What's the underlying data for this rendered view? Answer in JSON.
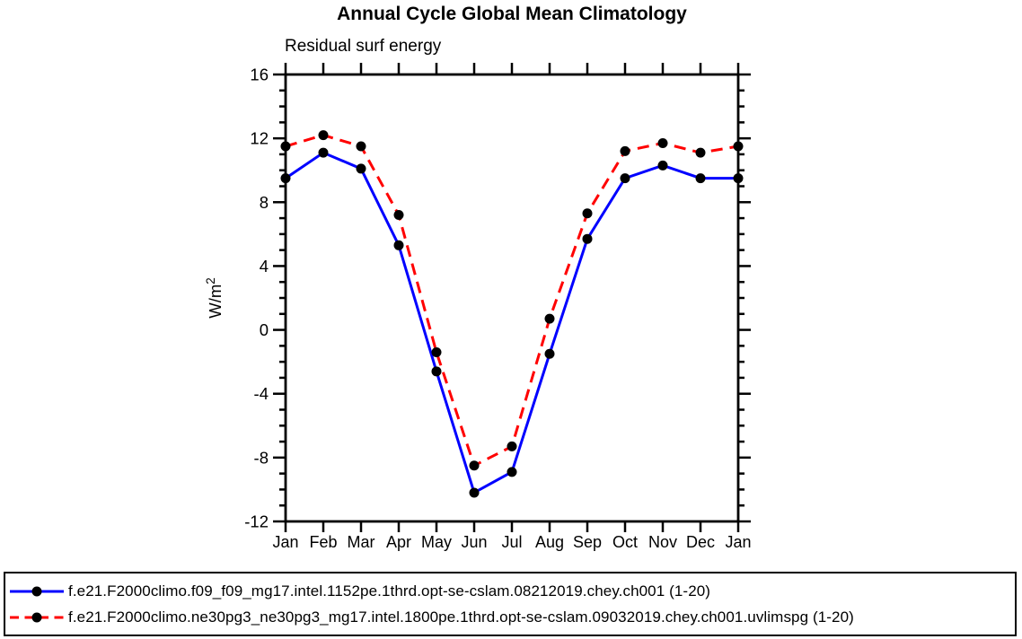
{
  "page": {
    "background": "#ffffff"
  },
  "chart_data": {
    "type": "line",
    "title": "Annual Cycle Global Mean Climatology",
    "subtitle": "Residual surf energy",
    "ylabel_base": "W/m",
    "ylabel_superscript": "2",
    "categories": [
      "Jan",
      "Feb",
      "Mar",
      "Apr",
      "May",
      "Jun",
      "Jul",
      "Aug",
      "Sep",
      "Oct",
      "Nov",
      "Dec",
      "Jan"
    ],
    "ylim": [
      -12,
      16
    ],
    "ytick_major": [
      16,
      12,
      8,
      4,
      0,
      -4,
      -8,
      -12
    ],
    "ytick_minor_step": 1,
    "grid": false,
    "legend_position": "bottom",
    "axis_color": "#000000",
    "marker_color": "#000000",
    "series": [
      {
        "name": "f.e21.F2000climo.f09_f09_mg17.intel.1152pe.1thrd.opt-se-cslam.08212019.chey.ch001 (1-20)",
        "color": "#0000ff",
        "style": "solid",
        "marker": "black-dot",
        "values": [
          9.5,
          11.1,
          10.1,
          5.3,
          -2.6,
          -10.2,
          -8.9,
          -1.5,
          5.7,
          9.5,
          10.3,
          9.5,
          9.5
        ]
      },
      {
        "name": "f.e21.F2000climo.ne30pg3_ne30pg3_mg17.intel.1800pe.1thrd.opt-se-cslam.09032019.chey.ch001.uvlimspg (1-20)",
        "color": "#ff0000",
        "style": "dashed",
        "marker": "black-dot",
        "values": [
          11.5,
          12.2,
          11.5,
          7.2,
          -1.4,
          -8.5,
          -7.3,
          0.7,
          7.3,
          11.2,
          11.7,
          11.1,
          11.5
        ]
      }
    ]
  }
}
